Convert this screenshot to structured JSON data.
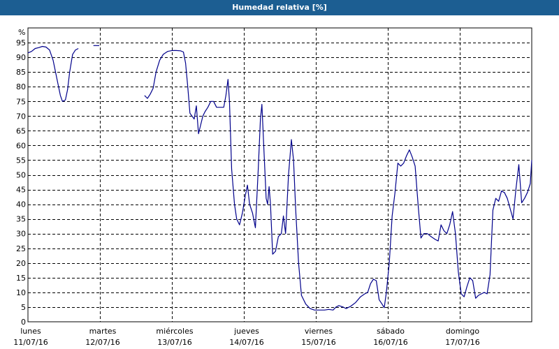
{
  "window": {
    "title": "Humedad relativa [%]"
  },
  "colors": {
    "title_bar": "#1c5e92",
    "series": "#00008b",
    "grid": "#000000",
    "background": "#ffffff"
  },
  "chart_data": {
    "type": "line",
    "title": "Humedad relativa [%]",
    "ylabel": "%",
    "xlabel": "",
    "ylim": [
      0,
      100
    ],
    "xlim": [
      0,
      7
    ],
    "y_ticks": [
      0,
      5,
      10,
      15,
      20,
      25,
      30,
      35,
      40,
      45,
      50,
      55,
      60,
      65,
      70,
      75,
      80,
      85,
      90,
      95
    ],
    "grid": true,
    "x_ticks": [
      {
        "day": "lunes",
        "date": "11/07/16"
      },
      {
        "day": "martes",
        "date": "12/07/16"
      },
      {
        "day": "miércoles",
        "date": "13/07/16"
      },
      {
        "day": "jueves",
        "date": "14/07/16"
      },
      {
        "day": "viernes",
        "date": "15/07/16"
      },
      {
        "day": "sábado",
        "date": "16/07/16"
      },
      {
        "day": "domingo",
        "date": "17/07/16"
      }
    ],
    "series": [
      {
        "segments": [
          [
            [
              0.0,
              91.5
            ],
            [
              0.05,
              92
            ],
            [
              0.1,
              93
            ],
            [
              0.15,
              93.3
            ],
            [
              0.2,
              93.7
            ],
            [
              0.25,
              93.5
            ],
            [
              0.3,
              92.5
            ],
            [
              0.35,
              89
            ],
            [
              0.4,
              83
            ],
            [
              0.45,
              77
            ],
            [
              0.48,
              75
            ],
            [
              0.52,
              75.5
            ],
            [
              0.55,
              79
            ],
            [
              0.58,
              85
            ],
            [
              0.62,
              91
            ],
            [
              0.66,
              92.5
            ],
            [
              0.7,
              93
            ]
          ],
          [
            [
              0.91,
              94
            ],
            [
              0.99,
              94
            ]
          ],
          [
            [
              1.62,
              77
            ],
            [
              1.66,
              76
            ],
            [
              1.7,
              77.5
            ],
            [
              1.74,
              79.5
            ],
            [
              1.78,
              85
            ],
            [
              1.83,
              89
            ],
            [
              1.88,
              91
            ],
            [
              1.94,
              92
            ],
            [
              2.0,
              92.3
            ],
            [
              2.06,
              92.3
            ],
            [
              2.12,
              92.2
            ],
            [
              2.16,
              91.8
            ],
            [
              2.19,
              88
            ],
            [
              2.22,
              80
            ],
            [
              2.25,
              71
            ],
            [
              2.28,
              70
            ],
            [
              2.31,
              69
            ],
            [
              2.34,
              73.5
            ],
            [
              2.37,
              64
            ],
            [
              2.4,
              67
            ],
            [
              2.43,
              70
            ],
            [
              2.46,
              71.5
            ],
            [
              2.5,
              73
            ],
            [
              2.54,
              75
            ],
            [
              2.58,
              75
            ],
            [
              2.62,
              73
            ],
            [
              2.68,
              73
            ],
            [
              2.72,
              73
            ],
            [
              2.75,
              77
            ],
            [
              2.78,
              82.5
            ],
            [
              2.8,
              75
            ],
            [
              2.83,
              52
            ],
            [
              2.87,
              40
            ],
            [
              2.9,
              35
            ],
            [
              2.94,
              33
            ],
            [
              2.98,
              37
            ],
            [
              3.02,
              43
            ],
            [
              3.05,
              46.5
            ],
            [
              3.08,
              40
            ],
            [
              3.12,
              37
            ],
            [
              3.16,
              32
            ],
            [
              3.2,
              52
            ],
            [
              3.23,
              69
            ],
            [
              3.25,
              74
            ],
            [
              3.28,
              58
            ],
            [
              3.31,
              42
            ],
            [
              3.33,
              40
            ],
            [
              3.35,
              46
            ],
            [
              3.37,
              40
            ],
            [
              3.4,
              23
            ],
            [
              3.44,
              24
            ],
            [
              3.48,
              29
            ],
            [
              3.52,
              30
            ],
            [
              3.55,
              36
            ],
            [
              3.58,
              30
            ],
            [
              3.62,
              50
            ],
            [
              3.66,
              62
            ],
            [
              3.69,
              55
            ],
            [
              3.72,
              38
            ],
            [
              3.76,
              20
            ],
            [
              3.8,
              9
            ],
            [
              3.86,
              6
            ],
            [
              3.92,
              4.5
            ],
            [
              3.98,
              4
            ],
            [
              4.05,
              4
            ],
            [
              4.12,
              4
            ],
            [
              4.18,
              4.2
            ],
            [
              4.24,
              4
            ],
            [
              4.28,
              5
            ],
            [
              4.32,
              5.5
            ],
            [
              4.38,
              5
            ],
            [
              4.42,
              4.5
            ],
            [
              4.48,
              5.2
            ],
            [
              4.55,
              6.5
            ],
            [
              4.62,
              8.5
            ],
            [
              4.68,
              9.5
            ],
            [
              4.72,
              10
            ],
            [
              4.76,
              13
            ],
            [
              4.8,
              14.5
            ],
            [
              4.84,
              14
            ],
            [
              4.88,
              7.5
            ],
            [
              4.92,
              6
            ],
            [
              4.95,
              4.8
            ],
            [
              4.98,
              10
            ],
            [
              5.02,
              20
            ],
            [
              5.06,
              36
            ],
            [
              5.1,
              44
            ],
            [
              5.14,
              54
            ],
            [
              5.18,
              53
            ],
            [
              5.22,
              54
            ],
            [
              5.26,
              56.5
            ],
            [
              5.3,
              58.5
            ],
            [
              5.34,
              56
            ],
            [
              5.38,
              53
            ],
            [
              5.42,
              40
            ],
            [
              5.46,
              28.5
            ],
            [
              5.5,
              30
            ],
            [
              5.55,
              30
            ],
            [
              5.6,
              29
            ],
            [
              5.66,
              28
            ],
            [
              5.7,
              27.5
            ],
            [
              5.74,
              33
            ],
            [
              5.78,
              31
            ],
            [
              5.82,
              30
            ],
            [
              5.86,
              33
            ],
            [
              5.9,
              37.5
            ],
            [
              5.94,
              30
            ],
            [
              5.98,
              17
            ],
            [
              6.02,
              9.5
            ],
            [
              6.06,
              8.5
            ],
            [
              6.1,
              12
            ],
            [
              6.14,
              15
            ],
            [
              6.18,
              14
            ],
            [
              6.22,
              8
            ],
            [
              6.26,
              9
            ],
            [
              6.3,
              9.5
            ],
            [
              6.34,
              10
            ],
            [
              6.38,
              9.5
            ],
            [
              6.42,
              16
            ],
            [
              6.46,
              38
            ],
            [
              6.5,
              42
            ],
            [
              6.54,
              41
            ],
            [
              6.58,
              44.5
            ],
            [
              6.62,
              44
            ],
            [
              6.66,
              42
            ],
            [
              6.7,
              38.5
            ],
            [
              6.74,
              35
            ],
            [
              6.78,
              45
            ],
            [
              6.82,
              53.5
            ],
            [
              6.86,
              40.5
            ],
            [
              6.9,
              42
            ],
            [
              6.94,
              44
            ],
            [
              6.98,
              47
            ],
            [
              7.0,
              55
            ]
          ]
        ]
      }
    ]
  }
}
